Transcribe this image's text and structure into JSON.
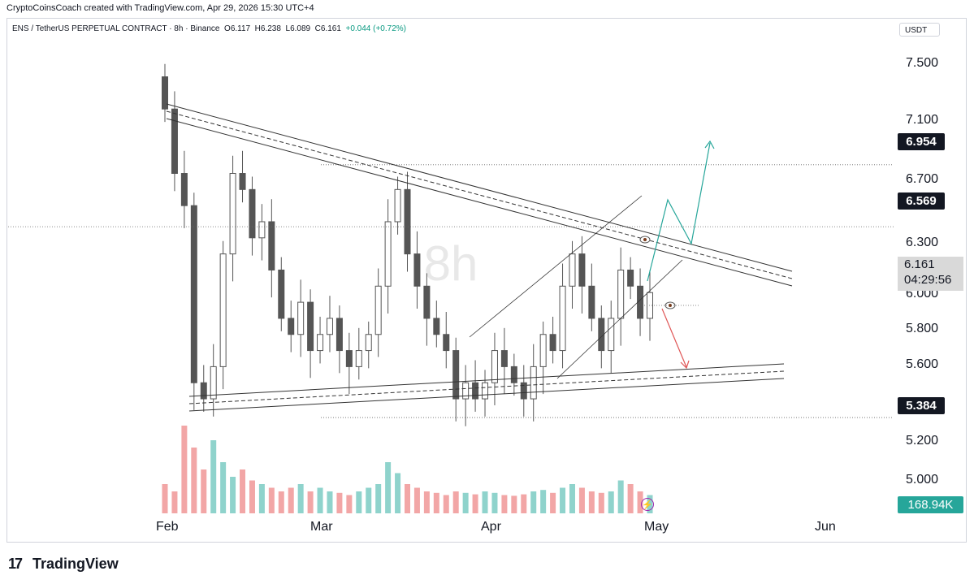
{
  "header": {
    "credit": "CryptoCoinsCoach created with TradingView.com, Apr 29, 2026 15:30 UTC+4"
  },
  "legend": {
    "symbol": "ENS / TetherUS PERPETUAL CONTRACT · 8h · Binance",
    "open_label": "O",
    "open": "6.117",
    "high_label": "H",
    "high": "6.238",
    "low_label": "L",
    "low": "6.089",
    "close_label": "C",
    "close": "6.161",
    "change": "+0.044 (+0.72%)"
  },
  "currency_button": "USDT",
  "watermark": "8h",
  "price_axis": {
    "labels": [
      "7.500",
      "7.100",
      "6.700",
      "6.300",
      "6.000",
      "5.800",
      "5.600",
      "5.200",
      "5.000"
    ]
  },
  "price_boxes": {
    "target_high": "6.954",
    "resistance": "6.569",
    "support": "5.384",
    "last_price": "6.161",
    "countdown": "04:29:56",
    "volume": "168.94K"
  },
  "time_axis": {
    "months": [
      "Feb",
      "Mar",
      "Apr",
      "May",
      "Jun"
    ]
  },
  "branding": {
    "logo_text": "TradingView",
    "logo_mark": "17"
  },
  "colors": {
    "candle": "#555555",
    "volume_up": "#8fd3cc",
    "volume_down": "#f2a6a6",
    "bull_arrow": "#26a69a",
    "bear_arrow": "#e05656",
    "line": "#333333"
  },
  "chart_data": {
    "type": "candlestick",
    "pair": "ENS/USDT",
    "interval": "8h",
    "x_range": [
      "Feb",
      "Jun"
    ],
    "ylim": [
      4.9,
      7.75
    ],
    "annotations": {
      "horizontal_levels": [
        6.954,
        6.569,
        5.384
      ],
      "descending_resistance_start": {
        "date": "Feb 01",
        "price": 7.16
      },
      "descending_resistance_end": {
        "date": "May 24",
        "price": 6.16
      },
      "ascending_support_start": {
        "date": "Feb 01",
        "price": 5.42
      },
      "ascending_support_end": {
        "date": "May 24",
        "price": 5.6
      }
    },
    "closes_approx": [
      7.3,
      6.9,
      6.7,
      5.6,
      5.5,
      5.7,
      6.4,
      6.9,
      6.8,
      6.5,
      6.6,
      6.3,
      6.0,
      5.9,
      6.1,
      5.8,
      5.9,
      6.0,
      5.8,
      5.7,
      5.8,
      5.9,
      6.2,
      6.6,
      6.8,
      6.4,
      6.2,
      6.0,
      5.9,
      5.8,
      5.5,
      5.6,
      5.5,
      5.6,
      5.8,
      5.7,
      5.6,
      5.5,
      5.7,
      5.9,
      5.8,
      6.2,
      6.4,
      6.2,
      6.0,
      5.8,
      6.0,
      6.3,
      6.2,
      6.0,
      6.16
    ],
    "volumes_approx": [
      40,
      30,
      120,
      90,
      60,
      100,
      70,
      50,
      60,
      45,
      40,
      35,
      30,
      35,
      40,
      30,
      35,
      30,
      28,
      25,
      30,
      35,
      40,
      70,
      55,
      40,
      35,
      30,
      28,
      25,
      30,
      28,
      26,
      30,
      28,
      25,
      24,
      26,
      30,
      32,
      28,
      35,
      40,
      35,
      30,
      28,
      30,
      45,
      40,
      30,
      25
    ]
  }
}
